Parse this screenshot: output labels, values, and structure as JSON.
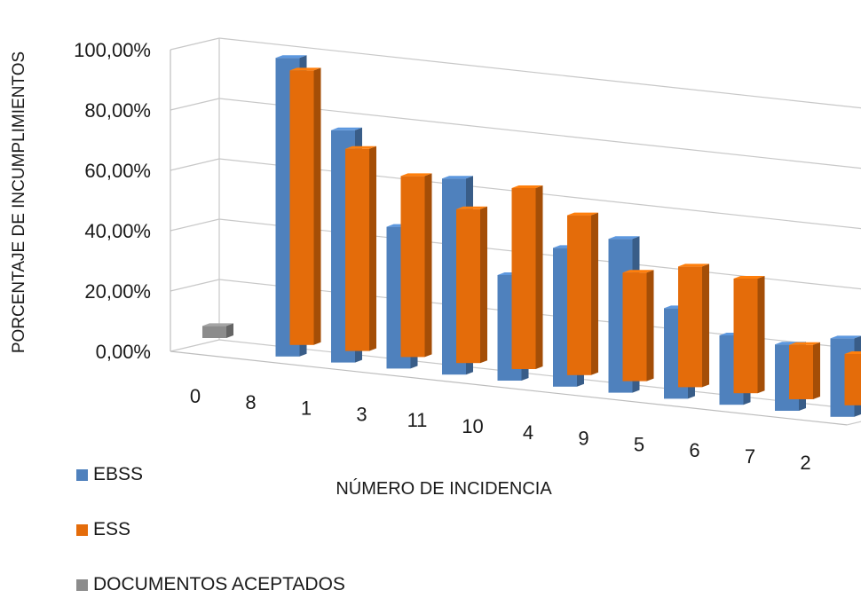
{
  "chart_data": {
    "type": "bar",
    "xlabel": "NÚMERO DE INCIDENCIA",
    "ylabel": "PORCENTAJE DE INCUMPLIMIENTOS",
    "ylim": [
      0,
      100
    ],
    "yticks": [
      "0,00%",
      "20,00%",
      "40,00%",
      "60,00%",
      "80,00%",
      "100,00%"
    ],
    "ytick_values": [
      0,
      20,
      40,
      60,
      80,
      100
    ],
    "categories": [
      "0",
      "8",
      "1",
      "3",
      "11",
      "10",
      "4",
      "9",
      "5",
      "6",
      "7",
      "2"
    ],
    "series": [
      {
        "name": "EBSS",
        "color": "#4F81BD",
        "values": [
          null,
          99,
          77,
          47,
          65,
          35,
          46,
          51,
          30,
          23,
          22,
          26
        ]
      },
      {
        "name": "ESS",
        "color": "#E46C0A",
        "values": [
          null,
          91,
          67,
          60,
          51,
          60,
          53,
          36,
          40,
          38,
          18,
          17
        ]
      },
      {
        "name": "DOCUMENTOS ACEPTADOS",
        "color": "#8C8C8C",
        "values": [
          4,
          null,
          null,
          null,
          null,
          null,
          null,
          null,
          null,
          null,
          null,
          null
        ]
      }
    ],
    "grid": true,
    "three_d": true,
    "legend_position": "bottom-left"
  }
}
